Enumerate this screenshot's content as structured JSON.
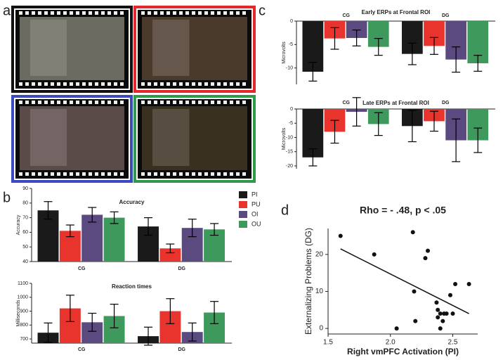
{
  "panel_labels": [
    "a",
    "b",
    "c",
    "d"
  ],
  "legend": [
    {
      "name": "PI",
      "color": "#1a1a1a"
    },
    {
      "name": "PU",
      "color": "#e8342c"
    },
    {
      "name": "OI",
      "color": "#5a4a80"
    },
    {
      "name": "OU",
      "color": "#3e9a5c"
    }
  ],
  "chart_data": [
    {
      "type": "bar",
      "title": "Accuracy",
      "ylabel": "Accuracy",
      "categories": [
        "CG",
        "DG"
      ],
      "ylim": [
        40,
        90
      ],
      "yticks": [
        40,
        50,
        60,
        70,
        80,
        90
      ],
      "series": [
        {
          "values": [
            75,
            64
          ],
          "errors": [
            6,
            6
          ]
        },
        {
          "values": [
            61,
            49
          ],
          "errors": [
            4,
            3
          ]
        },
        {
          "values": [
            72,
            63
          ],
          "errors": [
            5,
            6
          ]
        },
        {
          "values": [
            70,
            62
          ],
          "errors": [
            4,
            4
          ]
        }
      ]
    },
    {
      "type": "bar",
      "title": "Reaction times",
      "ylabel": "Milliseconds",
      "categories": [
        "CG",
        "DG"
      ],
      "ylim": [
        670,
        1100
      ],
      "yticks": [
        700,
        800,
        900,
        1000,
        1100
      ],
      "series": [
        {
          "values": [
            745,
            720
          ],
          "errors": [
            70,
            65
          ]
        },
        {
          "values": [
            920,
            900
          ],
          "errors": [
            95,
            90
          ]
        },
        {
          "values": [
            820,
            750
          ],
          "errors": [
            65,
            65
          ]
        },
        {
          "values": [
            865,
            890
          ],
          "errors": [
            85,
            80
          ]
        }
      ]
    },
    {
      "type": "bar",
      "title": "Early ERPs at Frontal ROI",
      "ylabel": "Microvolts",
      "categories": [
        "CG",
        "DG"
      ],
      "ylim": [
        -13.5,
        0
      ],
      "yticks": [
        0,
        -5,
        -10
      ],
      "series": [
        {
          "values": [
            -10.8,
            -7
          ],
          "errors": [
            2,
            2.3
          ]
        },
        {
          "values": [
            -3.7,
            -5.3
          ],
          "errors": [
            2.3,
            1.8
          ]
        },
        {
          "values": [
            -3.6,
            -8.2
          ],
          "errors": [
            1.7,
            2.7
          ]
        },
        {
          "values": [
            -5.5,
            -9
          ],
          "errors": [
            1.8,
            1.7
          ]
        }
      ]
    },
    {
      "type": "bar",
      "title": "Late ERPs at Frontal ROI",
      "ylabel": "Microvolts",
      "categories": [
        "CG",
        "DG"
      ],
      "ylim": [
        -21,
        0
      ],
      "yticks": [
        0,
        -5,
        -10,
        -15,
        -20
      ],
      "series": [
        {
          "values": [
            -17,
            -6
          ],
          "errors": [
            3,
            5.5
          ]
        },
        {
          "values": [
            -8,
            -4.3
          ],
          "errors": [
            4,
            3.5
          ]
        },
        {
          "values": [
            -1,
            -11
          ],
          "errors": [
            5,
            7.5
          ]
        },
        {
          "values": [
            -5.3,
            -11
          ],
          "errors": [
            4,
            4.3
          ]
        }
      ]
    },
    {
      "type": "scatter",
      "title": "Rho = - .48, p < .05",
      "xlabel": "Right vmPFC Activation (PI)",
      "ylabel": "Externalizing Problems (DG)",
      "xlim": [
        1.5,
        2.7
      ],
      "xticks": [
        1.5,
        2.0,
        2.5
      ],
      "ylim": [
        -1.5,
        27
      ],
      "yticks": [
        0,
        10,
        20
      ],
      "color": "#111111",
      "x": [
        1.6,
        1.87,
        2.18,
        2.3,
        2.28,
        2.19,
        2.2,
        2.05,
        2.4,
        2.37,
        2.38,
        2.38,
        2.42,
        2.43,
        2.45,
        2.5,
        2.48,
        2.52,
        2.63,
        2.4
      ],
      "y": [
        25,
        20,
        26,
        21,
        19,
        10,
        2,
        0,
        0,
        7,
        5,
        3,
        2,
        4,
        4,
        4,
        9,
        12,
        12,
        4
      ],
      "fit": {
        "x": [
          1.6,
          2.63
        ],
        "y": [
          21.5,
          4
        ]
      }
    }
  ]
}
